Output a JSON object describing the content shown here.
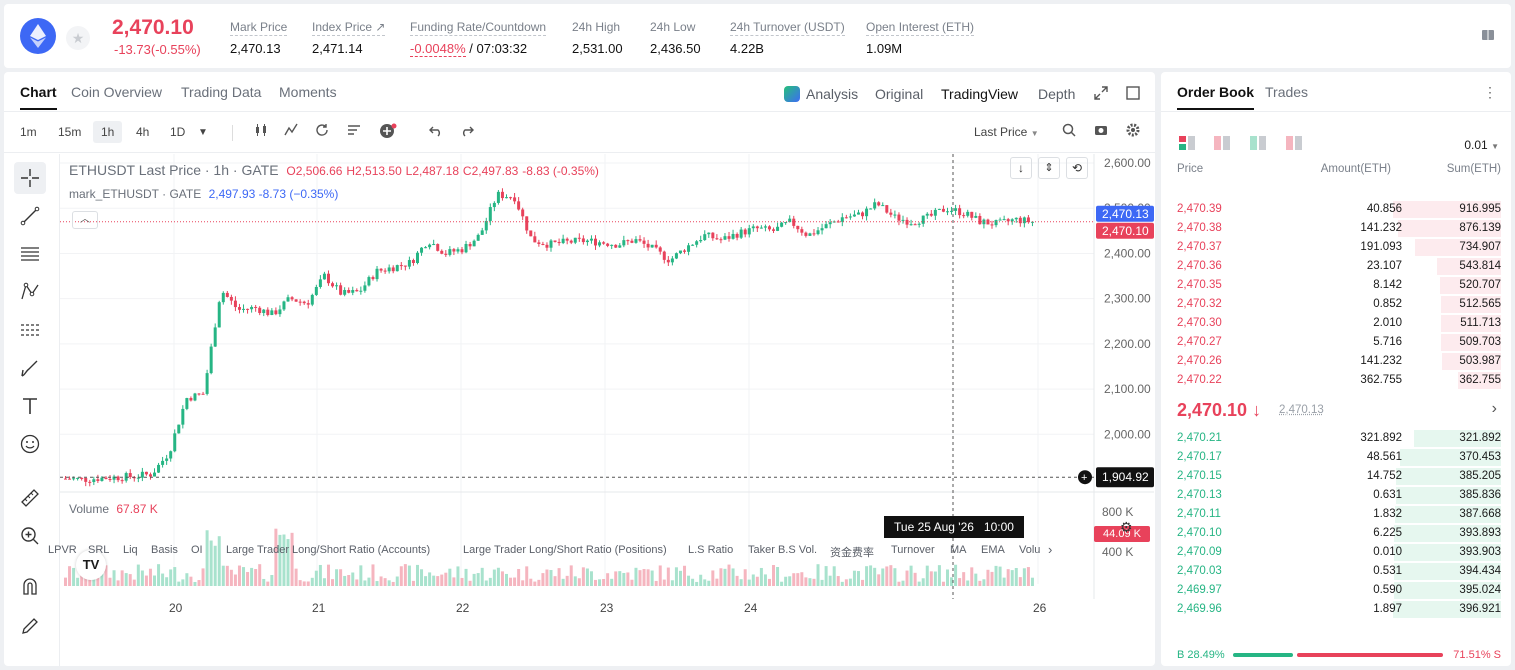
{
  "header": {
    "price": "2,470.10",
    "change": "-13.73(-0.55%)",
    "stats": [
      {
        "label": "Mark Price",
        "value": "2,470.13"
      },
      {
        "label": "Index Price ↗",
        "value": "2,471.14"
      },
      {
        "label": "Funding Rate/Countdown",
        "value_red": "-0.0048%",
        "value": " / 07:03:32"
      },
      {
        "label": "24h High",
        "value": "2,531.00"
      },
      {
        "label": "24h Low",
        "value": "2,436.50"
      },
      {
        "label": "24h Turnover (USDT)",
        "value": "4.22B"
      },
      {
        "label": "Open Interest (ETH)",
        "value": "1.09M"
      }
    ]
  },
  "chart_tabs": [
    "Chart",
    "Coin Overview",
    "Trading Data",
    "Moments"
  ],
  "view_tabs": {
    "analysis": "Analysis",
    "original": "Original",
    "tradingview": "TradingView",
    "depth": "Depth"
  },
  "timeframes": [
    "1m",
    "15m",
    "1h",
    "4h",
    "1D"
  ],
  "last_price_select": "Last Price",
  "legend": {
    "symbol": "ETHUSDT Last Price · 1h · GATE",
    "o": "O2,506.66",
    "h": "H2,513.50",
    "l": "L2,487.18",
    "c": "C2,497.83",
    "chg": "-8.83 (-0.35%)",
    "mark": "mark_ETHUSDT · GATE",
    "mark_val": "2,497.93",
    "mark_chg": "-8.73 (−0.35%)",
    "volume": "Volume",
    "volume_val": "67.87 K"
  },
  "bottom_tabs": [
    "LPVR",
    "SRL",
    "Liq",
    "Basis",
    "OI",
    "Large Trader Long/Short Ratio (Accounts)",
    "Large Trader Long/Short Ratio (Positions)",
    "L.S Ratio",
    "Taker B.S Vol.",
    "资金费率",
    "Turnover",
    "MA",
    "EMA",
    "Volu"
  ],
  "crosshair_time": "Tue 25 Aug '26   10:00",
  "colors": {
    "up": "#26b584",
    "down": "#e8425b",
    "accent": "#3d68f5"
  },
  "chart_data": {
    "type": "candlestick",
    "title": "ETHUSDT Last Price · 1h · GATE",
    "y_ticks": [
      "2,600.00",
      "2,500.00",
      "2,400.00",
      "2,300.00",
      "2,200.00",
      "2,100.00",
      "2,000.00"
    ],
    "ylim": [
      1890,
      2620
    ],
    "x_ticks": [
      "20",
      "21",
      "22",
      "23",
      "24",
      "26"
    ],
    "price_labels": {
      "mark": "2,470.13",
      "last": "2,470.10",
      "crosshair": "1,904.92"
    },
    "volume_ticks": [
      "800 K",
      "400 K"
    ],
    "volume_label": "44.09 K",
    "close_path": [
      1902,
      1900,
      1903,
      1905,
      1907,
      1912,
      1960,
      2080,
      2090,
      2320,
      2275,
      2280,
      2265,
      2300,
      2290,
      2350,
      2310,
      2315,
      2360,
      2370,
      2380,
      2430,
      2400,
      2410,
      2440,
      2530,
      2525,
      2430,
      2420,
      2425,
      2428,
      2425,
      2420,
      2430,
      2410,
      2385,
      2415,
      2440,
      2430,
      2445,
      2455,
      2450,
      2470,
      2440,
      2460,
      2480,
      2485,
      2510,
      2480,
      2470,
      2480,
      2500,
      2490,
      2470,
      2465,
      2475,
      2470
    ]
  },
  "orderbook": {
    "tabs": [
      "Order Book",
      "Trades"
    ],
    "precision": "0.01",
    "headers": [
      "Price",
      "Amount(ETH)",
      "Sum(ETH)"
    ],
    "asks": [
      {
        "price": "2,470.39",
        "amount": "40.856",
        "sum": "916.995",
        "depth": 1.0
      },
      {
        "price": "2,470.38",
        "amount": "141.232",
        "sum": "876.139",
        "depth": 0.955
      },
      {
        "price": "2,470.37",
        "amount": "191.093",
        "sum": "734.907",
        "depth": 0.8
      },
      {
        "price": "2,470.36",
        "amount": "23.107",
        "sum": "543.814",
        "depth": 0.593
      },
      {
        "price": "2,470.35",
        "amount": "8.142",
        "sum": "520.707",
        "depth": 0.568
      },
      {
        "price": "2,470.32",
        "amount": "0.852",
        "sum": "512.565",
        "depth": 0.559
      },
      {
        "price": "2,470.30",
        "amount": "2.010",
        "sum": "511.713",
        "depth": 0.558
      },
      {
        "price": "2,470.27",
        "amount": "5.716",
        "sum": "509.703",
        "depth": 0.556
      },
      {
        "price": "2,470.26",
        "amount": "141.232",
        "sum": "503.987",
        "depth": 0.55
      },
      {
        "price": "2,470.22",
        "amount": "362.755",
        "sum": "362.755",
        "depth": 0.396
      }
    ],
    "mid_price": "2,470.10 ↓",
    "mid_mark": "2,470.13",
    "bids": [
      {
        "price": "2,470.21",
        "amount": "321.892",
        "sum": "321.892",
        "depth": 0.81
      },
      {
        "price": "2,470.17",
        "amount": "48.561",
        "sum": "370.453",
        "depth": 0.933
      },
      {
        "price": "2,470.15",
        "amount": "14.752",
        "sum": "385.205",
        "depth": 0.97
      },
      {
        "price": "2,470.13",
        "amount": "0.631",
        "sum": "385.836",
        "depth": 0.972
      },
      {
        "price": "2,470.11",
        "amount": "1.832",
        "sum": "387.668",
        "depth": 0.977
      },
      {
        "price": "2,470.10",
        "amount": "6.225",
        "sum": "393.893",
        "depth": 0.992
      },
      {
        "price": "2,470.09",
        "amount": "0.010",
        "sum": "393.903",
        "depth": 0.992
      },
      {
        "price": "2,470.03",
        "amount": "0.531",
        "sum": "394.434",
        "depth": 0.994
      },
      {
        "price": "2,469.97",
        "amount": "0.590",
        "sum": "395.024",
        "depth": 0.995
      },
      {
        "price": "2,469.96",
        "amount": "1.897",
        "sum": "396.921",
        "depth": 1.0
      }
    ],
    "buy_ratio": "B 28.49%",
    "sell_ratio": "71.51% S",
    "buy_fraction": 0.2849
  }
}
